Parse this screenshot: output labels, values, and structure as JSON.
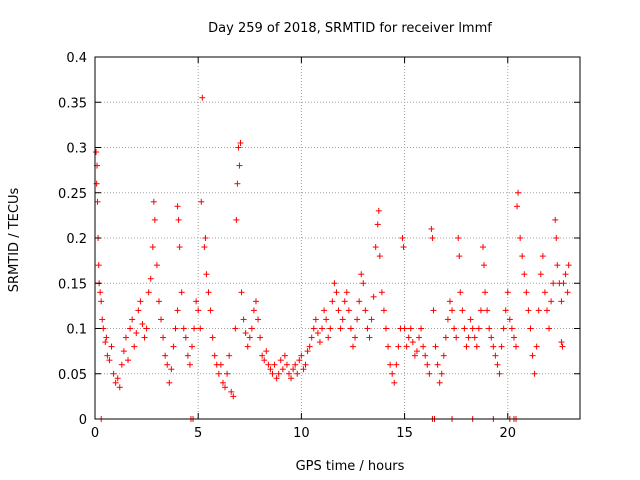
{
  "colors": {
    "series": "#ff0000",
    "grid": "#a0a0a0",
    "frame": "#000000"
  },
  "chart_data": {
    "type": "scatter",
    "title": "Day 259 of 2018, SRMTID for receiver lmmf",
    "xlabel": "GPS time / hours",
    "ylabel": "SRMTID / TECUs",
    "xlim": [
      0,
      23.5
    ],
    "ylim": [
      0,
      0.4
    ],
    "xticks": [
      0,
      5,
      10,
      15,
      20
    ],
    "xtick_labels": [
      "0",
      "5",
      "10",
      "15",
      "20"
    ],
    "yticks": [
      0,
      0.05,
      0.1,
      0.15,
      0.2,
      0.25,
      0.3,
      0.35,
      0.4
    ],
    "ytick_labels": [
      "0",
      "0.05",
      "0.1",
      "0.15",
      "0.2",
      "0.25",
      "0.3",
      "0.35",
      "0.4"
    ],
    "grid": true,
    "marker": "+",
    "series": [
      {
        "name": "SRMTID",
        "points": [
          [
            0.05,
            0.295
          ],
          [
            0.08,
            0.26
          ],
          [
            0.1,
            0.28
          ],
          [
            0.12,
            0.24
          ],
          [
            0.15,
            0.2
          ],
          [
            0.18,
            0.17
          ],
          [
            0.2,
            0.15
          ],
          [
            0.25,
            0.14
          ],
          [
            0.3,
            0.13
          ],
          [
            0.35,
            0.11
          ],
          [
            0.4,
            0.1
          ],
          [
            0.5,
            0.085
          ],
          [
            0.55,
            0.09
          ],
          [
            0.6,
            0.07
          ],
          [
            0.7,
            0.065
          ],
          [
            0.8,
            0.08
          ],
          [
            0.9,
            0.05
          ],
          [
            1.0,
            0.04
          ],
          [
            1.1,
            0.045
          ],
          [
            1.2,
            0.035
          ],
          [
            1.3,
            0.06
          ],
          [
            1.4,
            0.075
          ],
          [
            1.5,
            0.09
          ],
          [
            1.6,
            0.065
          ],
          [
            1.7,
            0.1
          ],
          [
            1.8,
            0.11
          ],
          [
            1.9,
            0.08
          ],
          [
            2.0,
            0.095
          ],
          [
            2.1,
            0.12
          ],
          [
            2.2,
            0.13
          ],
          [
            2.3,
            0.105
          ],
          [
            2.4,
            0.09
          ],
          [
            2.5,
            0.1
          ],
          [
            2.6,
            0.14
          ],
          [
            2.7,
            0.155
          ],
          [
            2.8,
            0.19
          ],
          [
            2.85,
            0.24
          ],
          [
            2.9,
            0.22
          ],
          [
            3.0,
            0.17
          ],
          [
            3.1,
            0.13
          ],
          [
            3.2,
            0.11
          ],
          [
            3.3,
            0.09
          ],
          [
            3.4,
            0.07
          ],
          [
            3.5,
            0.06
          ],
          [
            3.6,
            0.04
          ],
          [
            3.7,
            0.055
          ],
          [
            3.8,
            0.08
          ],
          [
            3.9,
            0.1
          ],
          [
            4.0,
            0.12
          ],
          [
            4.0,
            0.235
          ],
          [
            4.05,
            0.22
          ],
          [
            4.1,
            0.19
          ],
          [
            4.2,
            0.14
          ],
          [
            4.3,
            0.1
          ],
          [
            4.4,
            0.09
          ],
          [
            4.5,
            0.07
          ],
          [
            4.6,
            0.06
          ],
          [
            4.7,
            0.08
          ],
          [
            4.8,
            0.1
          ],
          [
            4.9,
            0.13
          ],
          [
            5.0,
            0.12
          ],
          [
            5.1,
            0.1
          ],
          [
            5.15,
            0.24
          ],
          [
            5.2,
            0.355
          ],
          [
            5.3,
            0.19
          ],
          [
            5.35,
            0.2
          ],
          [
            5.4,
            0.16
          ],
          [
            5.5,
            0.14
          ],
          [
            5.6,
            0.12
          ],
          [
            5.7,
            0.09
          ],
          [
            5.8,
            0.07
          ],
          [
            5.9,
            0.06
          ],
          [
            6.0,
            0.05
          ],
          [
            6.1,
            0.06
          ],
          [
            6.2,
            0.04
          ],
          [
            6.3,
            0.035
          ],
          [
            6.4,
            0.05
          ],
          [
            6.5,
            0.07
          ],
          [
            6.6,
            0.03
          ],
          [
            6.7,
            0.025
          ],
          [
            6.8,
            0.1
          ],
          [
            6.85,
            0.22
          ],
          [
            6.9,
            0.26
          ],
          [
            6.95,
            0.3
          ],
          [
            7.0,
            0.28
          ],
          [
            7.05,
            0.305
          ],
          [
            7.1,
            0.14
          ],
          [
            7.2,
            0.11
          ],
          [
            7.3,
            0.095
          ],
          [
            7.4,
            0.08
          ],
          [
            7.5,
            0.09
          ],
          [
            7.6,
            0.1
          ],
          [
            7.7,
            0.12
          ],
          [
            7.8,
            0.13
          ],
          [
            7.9,
            0.11
          ],
          [
            8.0,
            0.09
          ],
          [
            8.1,
            0.07
          ],
          [
            8.2,
            0.065
          ],
          [
            8.3,
            0.075
          ],
          [
            8.4,
            0.06
          ],
          [
            8.5,
            0.055
          ],
          [
            8.6,
            0.05
          ],
          [
            8.7,
            0.06
          ],
          [
            8.8,
            0.045
          ],
          [
            8.9,
            0.05
          ],
          [
            9.0,
            0.065
          ],
          [
            9.1,
            0.055
          ],
          [
            9.2,
            0.07
          ],
          [
            9.3,
            0.06
          ],
          [
            9.4,
            0.05
          ],
          [
            9.5,
            0.045
          ],
          [
            9.6,
            0.055
          ],
          [
            9.7,
            0.06
          ],
          [
            9.8,
            0.05
          ],
          [
            9.9,
            0.065
          ],
          [
            10.0,
            0.07
          ],
          [
            10.1,
            0.055
          ],
          [
            10.2,
            0.06
          ],
          [
            10.3,
            0.075
          ],
          [
            10.4,
            0.08
          ],
          [
            10.5,
            0.09
          ],
          [
            10.6,
            0.1
          ],
          [
            10.7,
            0.11
          ],
          [
            10.8,
            0.095
          ],
          [
            10.9,
            0.085
          ],
          [
            11.0,
            0.1
          ],
          [
            11.1,
            0.12
          ],
          [
            11.2,
            0.11
          ],
          [
            11.3,
            0.09
          ],
          [
            11.4,
            0.1
          ],
          [
            11.5,
            0.13
          ],
          [
            11.6,
            0.15
          ],
          [
            11.7,
            0.14
          ],
          [
            11.8,
            0.12
          ],
          [
            11.9,
            0.1
          ],
          [
            12.0,
            0.11
          ],
          [
            12.1,
            0.13
          ],
          [
            12.2,
            0.14
          ],
          [
            12.3,
            0.12
          ],
          [
            12.4,
            0.1
          ],
          [
            12.5,
            0.08
          ],
          [
            12.6,
            0.09
          ],
          [
            12.7,
            0.11
          ],
          [
            12.8,
            0.13
          ],
          [
            12.9,
            0.16
          ],
          [
            13.0,
            0.15
          ],
          [
            13.1,
            0.12
          ],
          [
            13.2,
            0.1
          ],
          [
            13.3,
            0.09
          ],
          [
            13.4,
            0.11
          ],
          [
            13.5,
            0.135
          ],
          [
            13.6,
            0.19
          ],
          [
            13.7,
            0.215
          ],
          [
            13.75,
            0.23
          ],
          [
            13.8,
            0.18
          ],
          [
            13.9,
            0.14
          ],
          [
            14.0,
            0.12
          ],
          [
            14.1,
            0.1
          ],
          [
            14.2,
            0.08
          ],
          [
            14.3,
            0.06
          ],
          [
            14.4,
            0.05
          ],
          [
            14.5,
            0.04
          ],
          [
            14.6,
            0.06
          ],
          [
            14.7,
            0.08
          ],
          [
            14.8,
            0.1
          ],
          [
            14.9,
            0.2
          ],
          [
            14.95,
            0.19
          ],
          [
            15.0,
            0.1
          ],
          [
            15.1,
            0.08
          ],
          [
            15.2,
            0.09
          ],
          [
            15.3,
            0.1
          ],
          [
            15.4,
            0.085
          ],
          [
            15.5,
            0.07
          ],
          [
            15.6,
            0.075
          ],
          [
            15.7,
            0.09
          ],
          [
            15.8,
            0.1
          ],
          [
            15.9,
            0.08
          ],
          [
            16.0,
            0.07
          ],
          [
            16.1,
            0.06
          ],
          [
            16.2,
            0.05
          ],
          [
            16.3,
            0.21
          ],
          [
            16.35,
            0.2
          ],
          [
            16.4,
            0.12
          ],
          [
            16.5,
            0.08
          ],
          [
            16.6,
            0.06
          ],
          [
            16.7,
            0.04
          ],
          [
            16.8,
            0.05
          ],
          [
            16.9,
            0.07
          ],
          [
            17.0,
            0.09
          ],
          [
            17.1,
            0.11
          ],
          [
            17.2,
            0.13
          ],
          [
            17.3,
            0.12
          ],
          [
            17.4,
            0.1
          ],
          [
            17.5,
            0.09
          ],
          [
            17.6,
            0.2
          ],
          [
            17.65,
            0.18
          ],
          [
            17.7,
            0.14
          ],
          [
            17.8,
            0.12
          ],
          [
            17.9,
            0.1
          ],
          [
            18.0,
            0.08
          ],
          [
            18.1,
            0.09
          ],
          [
            18.2,
            0.11
          ],
          [
            18.3,
            0.1
          ],
          [
            18.4,
            0.09
          ],
          [
            18.5,
            0.08
          ],
          [
            18.6,
            0.1
          ],
          [
            18.7,
            0.12
          ],
          [
            18.8,
            0.19
          ],
          [
            18.85,
            0.17
          ],
          [
            18.9,
            0.14
          ],
          [
            19.0,
            0.12
          ],
          [
            19.1,
            0.1
          ],
          [
            19.2,
            0.09
          ],
          [
            19.3,
            0.08
          ],
          [
            19.4,
            0.07
          ],
          [
            19.5,
            0.06
          ],
          [
            19.6,
            0.05
          ],
          [
            19.7,
            0.08
          ],
          [
            19.8,
            0.1
          ],
          [
            19.9,
            0.12
          ],
          [
            20.0,
            0.14
          ],
          [
            20.1,
            0.11
          ],
          [
            20.2,
            0.1
          ],
          [
            20.3,
            0.09
          ],
          [
            20.4,
            0.08
          ],
          [
            20.45,
            0.235
          ],
          [
            20.5,
            0.25
          ],
          [
            20.6,
            0.2
          ],
          [
            20.7,
            0.18
          ],
          [
            20.8,
            0.16
          ],
          [
            20.9,
            0.14
          ],
          [
            21.0,
            0.12
          ],
          [
            21.1,
            0.1
          ],
          [
            21.2,
            0.07
          ],
          [
            21.3,
            0.05
          ],
          [
            21.4,
            0.08
          ],
          [
            21.5,
            0.12
          ],
          [
            21.6,
            0.16
          ],
          [
            21.7,
            0.18
          ],
          [
            21.8,
            0.14
          ],
          [
            21.9,
            0.12
          ],
          [
            22.0,
            0.1
          ],
          [
            22.1,
            0.13
          ],
          [
            22.2,
            0.15
          ],
          [
            22.3,
            0.22
          ],
          [
            22.35,
            0.2
          ],
          [
            22.4,
            0.17
          ],
          [
            22.5,
            0.15
          ],
          [
            22.6,
            0.13
          ],
          [
            22.7,
            0.15
          ],
          [
            22.8,
            0.16
          ],
          [
            22.9,
            0.14
          ],
          [
            22.95,
            0.17
          ],
          [
            22.6,
            0.085
          ],
          [
            22.65,
            0.08
          ],
          [
            0.3,
            0.0
          ],
          [
            4.65,
            0.0
          ],
          [
            4.75,
            0.0
          ],
          [
            16.35,
            0.0
          ],
          [
            16.45,
            0.0
          ],
          [
            17.3,
            0.0
          ],
          [
            18.3,
            0.0
          ],
          [
            19.3,
            0.0
          ],
          [
            20.1,
            0.0
          ],
          [
            20.3,
            0.0
          ],
          [
            20.4,
            0.0
          ]
        ]
      }
    ]
  }
}
